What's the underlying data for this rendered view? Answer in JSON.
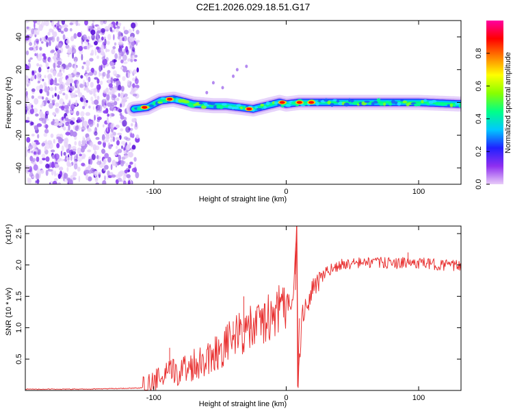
{
  "title": "C2E1.2026.029.18.51.G17",
  "chart_data": [
    {
      "type": "heatmap",
      "xlabel": "Height of straight line (km)",
      "ylabel": "Frequency (Hz)",
      "xlim": [
        -197,
        132
      ],
      "ylim": [
        -50,
        50
      ],
      "xticks": [
        -100,
        0,
        100
      ],
      "yticks": [
        -40,
        -20,
        0,
        20,
        40
      ],
      "xtick_labels": [
        "-100",
        "0",
        "100"
      ],
      "ytick_labels": [
        "-40",
        "-20",
        "0",
        "20",
        "40"
      ],
      "noise_region_x": [
        -197,
        -112
      ],
      "signal_start_x": -115,
      "track": [
        {
          "x": -115,
          "y": -4
        },
        {
          "x": -105,
          "y": -3
        },
        {
          "x": -95,
          "y": 1
        },
        {
          "x": -85,
          "y": 2
        },
        {
          "x": -70,
          "y": -1
        },
        {
          "x": -55,
          "y": -2
        },
        {
          "x": -45,
          "y": -2
        },
        {
          "x": -35,
          "y": -3
        },
        {
          "x": -25,
          "y": -4
        },
        {
          "x": -15,
          "y": -2
        },
        {
          "x": -5,
          "y": 0
        },
        {
          "x": 0,
          "y": -1
        },
        {
          "x": 10,
          "y": 0
        },
        {
          "x": 20,
          "y": 0
        },
        {
          "x": 60,
          "y": 0
        },
        {
          "x": 100,
          "y": 0
        },
        {
          "x": 132,
          "y": -1
        }
      ],
      "hot_spots": [
        {
          "x": -107,
          "y": -3
        },
        {
          "x": -88,
          "y": 2
        },
        {
          "x": -28,
          "y": -4
        },
        {
          "x": -3,
          "y": 0
        },
        {
          "x": 10,
          "y": 0
        },
        {
          "x": 19,
          "y": 0
        }
      ],
      "colorbar": {
        "label": "Normalized spectral amplitude",
        "range": [
          0,
          1
        ],
        "ticks": [
          0.0,
          0.2,
          0.4,
          0.6,
          0.8
        ],
        "tick_labels": [
          "0.0",
          "0.2",
          "0.4",
          "0.6",
          "0.8"
        ],
        "colors": [
          "#e8ccf8",
          "#8f2ff0",
          "#2020ff",
          "#00c8ff",
          "#00ff88",
          "#88ff00",
          "#ffff00",
          "#ff8000",
          "#ff0000",
          "#ff00a0"
        ]
      },
      "colors": {
        "noise": "#8a3ef0",
        "track_low": "#00c0ff",
        "track_mid": "#00ff80",
        "track_high": "#ff0000"
      }
    },
    {
      "type": "line",
      "xlabel": "Height of straight line (km)",
      "ylabel": "SNR (10 * v/v)",
      "exponent_label": "(x10⁴)",
      "xlim": [
        -197,
        132
      ],
      "ylim": [
        0,
        2.62
      ],
      "xticks": [
        -100,
        0,
        100
      ],
      "yticks": [
        0.5,
        1.0,
        1.5,
        2.0,
        2.5
      ],
      "xtick_labels": [
        "-100",
        "0",
        "100"
      ],
      "ytick_labels": [
        "0.5",
        "1.0",
        "1.5",
        "2.0",
        "2.5"
      ],
      "series": [
        {
          "name": "SNR",
          "color": "#e83030",
          "points": [
            {
              "x": -197,
              "y": 0.02
            },
            {
              "x": -150,
              "y": 0.02
            },
            {
              "x": -110,
              "y": 0.04
            },
            {
              "x": -100,
              "y": 0.12
            },
            {
              "x": -90,
              "y": 0.25
            },
            {
              "x": -80,
              "y": 0.32
            },
            {
              "x": -70,
              "y": 0.42
            },
            {
              "x": -60,
              "y": 0.52
            },
            {
              "x": -50,
              "y": 0.65
            },
            {
              "x": -40,
              "y": 0.85
            },
            {
              "x": -30,
              "y": 0.95
            },
            {
              "x": -20,
              "y": 1.05
            },
            {
              "x": -10,
              "y": 1.2
            },
            {
              "x": 0,
              "y": 1.35
            },
            {
              "x": 5,
              "y": 1.5
            },
            {
              "x": 8,
              "y": 2.6
            },
            {
              "x": 9,
              "y": 0.08
            },
            {
              "x": 12,
              "y": 1.2
            },
            {
              "x": 20,
              "y": 1.6
            },
            {
              "x": 30,
              "y": 1.88
            },
            {
              "x": 40,
              "y": 2.0
            },
            {
              "x": 60,
              "y": 2.04
            },
            {
              "x": 80,
              "y": 2.03
            },
            {
              "x": 100,
              "y": 2.03
            },
            {
              "x": 132,
              "y": 1.98
            }
          ],
          "spikes": [
            {
              "x": -88,
              "y": 0.68
            },
            {
              "x": -40,
              "y": 1.1
            },
            {
              "x": -32,
              "y": 1.5
            },
            {
              "x": -27,
              "y": 1.25
            },
            {
              "x": 7,
              "y": 1.85
            },
            {
              "x": 92,
              "y": 2.2
            }
          ]
        }
      ]
    }
  ]
}
